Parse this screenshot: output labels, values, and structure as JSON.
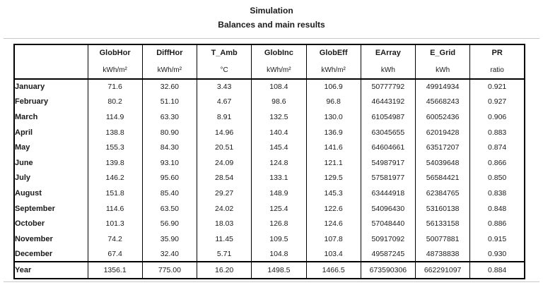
{
  "title": "Simulation",
  "subtitle": "Balances and main results",
  "colors": {
    "table_border": "#000000",
    "section_separator": "#c9c9c9",
    "text": "#1a1a1a",
    "background": "#ffffff"
  },
  "table": {
    "columns": [
      {
        "name": "",
        "unit": ""
      },
      {
        "name": "GlobHor",
        "unit": "kWh/m²"
      },
      {
        "name": "DiffHor",
        "unit": "kWh/m²"
      },
      {
        "name": "T_Amb",
        "unit": "°C"
      },
      {
        "name": "GlobInc",
        "unit": "kWh/m²"
      },
      {
        "name": "GlobEff",
        "unit": "kWh/m²"
      },
      {
        "name": "EArray",
        "unit": "kWh"
      },
      {
        "name": "E_Grid",
        "unit": "kWh"
      },
      {
        "name": "PR",
        "unit": "ratio"
      }
    ],
    "rows": [
      {
        "label": "January",
        "values": [
          "71.6",
          "32.60",
          "3.43",
          "108.4",
          "106.9",
          "50777792",
          "49914934",
          "0.921"
        ]
      },
      {
        "label": "February",
        "values": [
          "80.2",
          "51.10",
          "4.67",
          "98.6",
          "96.8",
          "46443192",
          "45668243",
          "0.927"
        ]
      },
      {
        "label": "March",
        "values": [
          "114.9",
          "63.30",
          "8.91",
          "132.5",
          "130.0",
          "61054987",
          "60052436",
          "0.906"
        ]
      },
      {
        "label": "April",
        "values": [
          "138.8",
          "80.90",
          "14.96",
          "140.4",
          "136.9",
          "63045655",
          "62019428",
          "0.883"
        ]
      },
      {
        "label": "May",
        "values": [
          "155.3",
          "84.30",
          "20.51",
          "145.4",
          "141.6",
          "64604661",
          "63517207",
          "0.874"
        ]
      },
      {
        "label": "June",
        "values": [
          "139.8",
          "93.10",
          "24.09",
          "124.8",
          "121.1",
          "54987917",
          "54039648",
          "0.866"
        ]
      },
      {
        "label": "July",
        "values": [
          "146.2",
          "95.60",
          "28.54",
          "133.1",
          "129.5",
          "57581977",
          "56584421",
          "0.850"
        ]
      },
      {
        "label": "August",
        "values": [
          "151.8",
          "85.40",
          "29.27",
          "148.9",
          "145.3",
          "63444918",
          "62384765",
          "0.838"
        ]
      },
      {
        "label": "September",
        "values": [
          "114.6",
          "63.50",
          "24.02",
          "125.4",
          "122.6",
          "54096430",
          "53160138",
          "0.848"
        ]
      },
      {
        "label": "October",
        "values": [
          "101.3",
          "56.90",
          "18.03",
          "126.8",
          "124.6",
          "57048440",
          "56133158",
          "0.886"
        ]
      },
      {
        "label": "November",
        "values": [
          "74.2",
          "35.90",
          "11.45",
          "109.5",
          "107.8",
          "50917092",
          "50077881",
          "0.915"
        ]
      },
      {
        "label": "December",
        "values": [
          "67.4",
          "32.40",
          "5.71",
          "104.8",
          "103.4",
          "49587245",
          "48738838",
          "0.930"
        ]
      }
    ],
    "total_row": {
      "label": "Year",
      "values": [
        "1356.1",
        "775.00",
        "16.20",
        "1498.5",
        "1466.5",
        "673590306",
        "662291097",
        "0.884"
      ]
    }
  }
}
